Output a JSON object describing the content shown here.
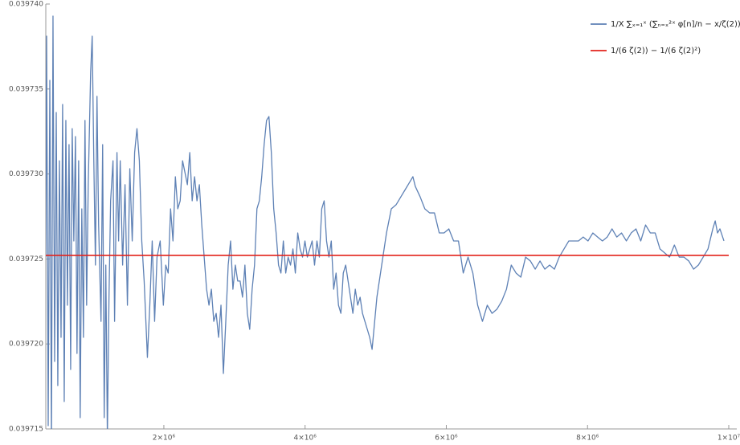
{
  "chart_data": {
    "type": "line",
    "xlim": [
      328000,
      10000000
    ],
    "ylim": [
      0.039715,
      0.03974
    ],
    "xticks": [
      {
        "value": 2000000,
        "label": "2×10⁶"
      },
      {
        "value": 4000000,
        "label": "4×10⁶"
      },
      {
        "value": 6000000,
        "label": "6×10⁶"
      },
      {
        "value": 8000000,
        "label": "8×10⁶"
      },
      {
        "value": 10000000,
        "label": "1×10⁷"
      }
    ],
    "yticks": [
      {
        "value": 0.039715,
        "label": "0.039715"
      },
      {
        "value": 0.03972,
        "label": "0.039720"
      },
      {
        "value": 0.039725,
        "label": "0.039725"
      },
      {
        "value": 0.03973,
        "label": "0.039730"
      },
      {
        "value": 0.039735,
        "label": "0.039735"
      },
      {
        "value": 0.03974,
        "label": "0.039740"
      }
    ],
    "legend": "upper right",
    "series": [
      {
        "name": "1/X ∑ₓ₌₁ˣ (∑ₙ₌ₓ²ˣ φ[n]/n − x/ζ(2))²",
        "color": "#5e81b5",
        "x": [
          328000,
          340000,
          362000,
          385000,
          408000,
          430000,
          453000,
          476000,
          498000,
          521000,
          544000,
          566000,
          589000,
          612000,
          634000,
          657000,
          680000,
          702000,
          725000,
          748000,
          770000,
          793000,
          815000,
          838000,
          861000,
          883000,
          906000,
          929000,
          963000,
          985000,
          1008000,
          1031000,
          1053000,
          1076000,
          1110000,
          1133000,
          1155000,
          1178000,
          1200000,
          1223000,
          1246000,
          1280000,
          1302000,
          1336000,
          1359000,
          1382000,
          1416000,
          1450000,
          1484000,
          1518000,
          1552000,
          1586000,
          1619000,
          1653000,
          1687000,
          1721000,
          1767000,
          1801000,
          1835000,
          1869000,
          1903000,
          1948000,
          1993000,
          2027000,
          2061000,
          2095000,
          2129000,
          2163000,
          2197000,
          2231000,
          2265000,
          2299000,
          2333000,
          2367000,
          2401000,
          2435000,
          2469000,
          2503000,
          2537000,
          2571000,
          2605000,
          2639000,
          2673000,
          2707000,
          2741000,
          2775000,
          2809000,
          2843000,
          2877000,
          2911000,
          2945000,
          2978000,
          3012000,
          3046000,
          3080000,
          3114000,
          3148000,
          3182000,
          3216000,
          3250000,
          3284000,
          3318000,
          3352000,
          3386000,
          3420000,
          3454000,
          3488000,
          3522000,
          3556000,
          3590000,
          3624000,
          3658000,
          3692000,
          3726000,
          3760000,
          3794000,
          3828000,
          3862000,
          3896000,
          3930000,
          3964000,
          3998000,
          4032000,
          4066000,
          4100000,
          4134000,
          4168000,
          4202000,
          4236000,
          4270000,
          4304000,
          4338000,
          4371000,
          4405000,
          4439000,
          4473000,
          4507000,
          4541000,
          4575000,
          4609000,
          4643000,
          4677000,
          4711000,
          4745000,
          4779000,
          4813000,
          4847000,
          4881000,
          4915000,
          4949000,
          5017000,
          5085000,
          5153000,
          5221000,
          5289000,
          5357000,
          5425000,
          5493000,
          5527000,
          5561000,
          5629000,
          5696000,
          5764000,
          5832000,
          5900000,
          5968000,
          6036000,
          6104000,
          6172000,
          6240000,
          6308000,
          6376000,
          6444000,
          6512000,
          6580000,
          6648000,
          6716000,
          6784000,
          6852000,
          6920000,
          6988000,
          7055000,
          7123000,
          7191000,
          7259000,
          7327000,
          7395000,
          7463000,
          7531000,
          7599000,
          7667000,
          7735000,
          7803000,
          7871000,
          7939000,
          8007000,
          8075000,
          8143000,
          8211000,
          8279000,
          8347000,
          8414000,
          8482000,
          8550000,
          8618000,
          8686000,
          8754000,
          8822000,
          8890000,
          8958000,
          9026000,
          9094000,
          9162000,
          9230000,
          9298000,
          9366000,
          9434000,
          9502000,
          9570000,
          9638000,
          9706000,
          9774000,
          9808000,
          9841000,
          9875000,
          9932000
        ],
        "values": [
          0.03972511,
          0.03973811,
          0.03971519,
          0.03973551,
          0.03971401,
          0.03973929,
          0.03971897,
          0.03973362,
          0.03971755,
          0.03973078,
          0.03972039,
          0.03973409,
          0.03971661,
          0.03973315,
          0.03972228,
          0.03973173,
          0.0397185,
          0.03973267,
          0.03972606,
          0.0397322,
          0.03971944,
          0.03973078,
          0.03971566,
          0.03972795,
          0.03972039,
          0.03973315,
          0.03972228,
          0.03972937,
          0.03973598,
          0.03973811,
          0.03973078,
          0.03972464,
          0.03973457,
          0.039727,
          0.03972133,
          0.03973173,
          0.03971566,
          0.03972464,
          0.03971448,
          0.03972275,
          0.03972842,
          0.03973078,
          0.03972133,
          0.03973126,
          0.03972606,
          0.03973078,
          0.03972464,
          0.03972937,
          0.03972228,
          0.03973031,
          0.03972606,
          0.03973126,
          0.03973267,
          0.03973078,
          0.03972606,
          0.0397237,
          0.03971921,
          0.03972228,
          0.03972606,
          0.03972133,
          0.03972511,
          0.03972606,
          0.03972228,
          0.03972464,
          0.03972417,
          0.03972795,
          0.03972606,
          0.03972984,
          0.03972795,
          0.03972842,
          0.03973078,
          0.03973008,
          0.03972937,
          0.03973126,
          0.03972842,
          0.03972984,
          0.03972842,
          0.03972937,
          0.039727,
          0.03972511,
          0.03972322,
          0.03972228,
          0.03972322,
          0.03972133,
          0.0397218,
          0.03972039,
          0.03972228,
          0.03971826,
          0.03972133,
          0.03972464,
          0.03972606,
          0.03972322,
          0.03972464,
          0.0397237,
          0.0397237,
          0.03972275,
          0.03972464,
          0.0397218,
          0.03972086,
          0.03972322,
          0.03972464,
          0.03972795,
          0.03972842,
          0.03972984,
          0.03973173,
          0.03973315,
          0.03973338,
          0.03973126,
          0.03972795,
          0.03972653,
          0.03972464,
          0.03972417,
          0.03972606,
          0.03972417,
          0.03972511,
          0.03972464,
          0.03972559,
          0.03972417,
          0.03972653,
          0.03972559,
          0.03972511,
          0.03972606,
          0.03972511,
          0.03972559,
          0.03972606,
          0.03972464,
          0.03972606,
          0.03972511,
          0.03972795,
          0.03972842,
          0.03972606,
          0.03972511,
          0.03972606,
          0.03972322,
          0.03972417,
          0.03972228,
          0.0397218,
          0.03972417,
          0.03972464,
          0.0397237,
          0.03972275,
          0.0397218,
          0.03972322,
          0.03972228,
          0.03972275,
          0.0397218,
          0.03972133,
          0.03972086,
          0.03972039,
          0.03971968,
          0.03972275,
          0.03972464,
          0.03972653,
          0.03972795,
          0.03972819,
          0.03972866,
          0.03972913,
          0.0397296,
          0.03972984,
          0.03972927,
          0.03972866,
          0.03972795,
          0.03972771,
          0.03972771,
          0.03972653,
          0.03972653,
          0.03972677,
          0.03972606,
          0.03972606,
          0.03972417,
          0.03972511,
          0.03972417,
          0.03972228,
          0.03972133,
          0.03972228,
          0.0397218,
          0.03972204,
          0.03972251,
          0.03972322,
          0.03972464,
          0.03972417,
          0.03972393,
          0.03972511,
          0.03972488,
          0.0397244,
          0.03972488,
          0.0397244,
          0.03972464,
          0.0397244,
          0.03972511,
          0.03972559,
          0.03972606,
          0.03972606,
          0.03972606,
          0.03972629,
          0.03972606,
          0.03972653,
          0.03972629,
          0.03972606,
          0.03972629,
          0.03972677,
          0.03972629,
          0.03972653,
          0.03972606,
          0.03972653,
          0.03972677,
          0.03972606,
          0.039727,
          0.03972653,
          0.03972653,
          0.03972559,
          0.03972535,
          0.03972511,
          0.03972582,
          0.03972511,
          0.03972511,
          0.03972488,
          0.0397244,
          0.03972464,
          0.03972511,
          0.03972559,
          0.03972677,
          0.03972724,
          0.03972653,
          0.03972677,
          0.03972606
        ]
      },
      {
        "name": "1/(6 ζ(2)) − 1/(6 ζ(2)²)",
        "color": "#e3231c",
        "x": [
          328000,
          10000000
        ],
        "values": [
          0.03972521,
          0.03972521
        ]
      }
    ]
  }
}
